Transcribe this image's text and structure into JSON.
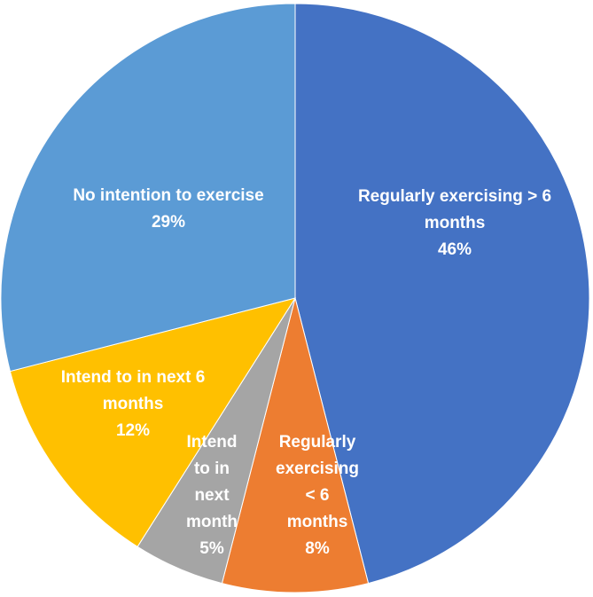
{
  "chart_data": {
    "type": "pie",
    "title": "",
    "start_angle_deg": 0,
    "direction": "clockwise",
    "legend": "none",
    "slices": [
      {
        "label_lines": [
          "Regularly exercising > 6",
          "months"
        ],
        "value": 46,
        "value_label": "46%",
        "color": "#4472C4"
      },
      {
        "label_lines": [
          "Regularly",
          "exercising",
          "< 6",
          "months"
        ],
        "value": 8,
        "value_label": "8%",
        "color": "#ED7D31"
      },
      {
        "label_lines": [
          "Intend",
          "to in",
          "next",
          "month"
        ],
        "value": 5,
        "value_label": "5%",
        "color": "#A5A5A5"
      },
      {
        "label_lines": [
          "Intend to in next 6",
          "months"
        ],
        "value": 12,
        "value_label": "12%",
        "color": "#FFC000"
      },
      {
        "label_lines": [
          "No intention to exercise"
        ],
        "value": 29,
        "value_label": "29%",
        "color": "#5B9BD5"
      }
    ]
  }
}
